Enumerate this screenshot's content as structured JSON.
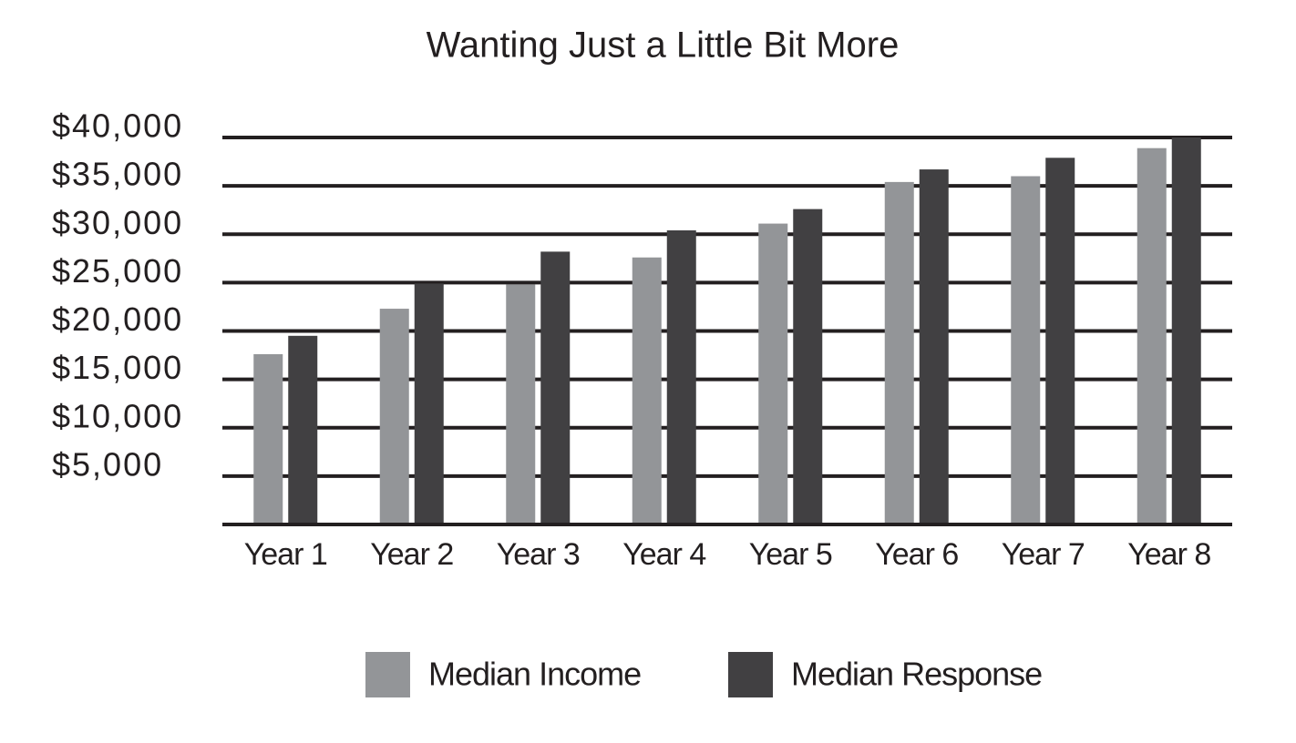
{
  "chart_data": {
    "type": "bar",
    "title": "Wanting Just a Little Bit More",
    "categories": [
      "Year 1",
      "Year 2",
      "Year 3",
      "Year 4",
      "Year 5",
      "Year 6",
      "Year 7",
      "Year 8"
    ],
    "series": [
      {
        "name": "Median Income",
        "color": "#939598",
        "values": [
          17600,
          22300,
          24800,
          27600,
          31100,
          35400,
          36000,
          38900
        ]
      },
      {
        "name": "Median Response",
        "color": "#414042",
        "values": [
          19500,
          24900,
          28200,
          30400,
          32600,
          36700,
          37900,
          40000
        ]
      }
    ],
    "ylim": [
      0,
      40000
    ],
    "yticks": [
      {
        "value": 5000,
        "label": "$5,000"
      },
      {
        "value": 10000,
        "label": "$10,000"
      },
      {
        "value": 15000,
        "label": "$15,000"
      },
      {
        "value": 20000,
        "label": "$20,000"
      },
      {
        "value": 25000,
        "label": "$25,000"
      },
      {
        "value": 30000,
        "label": "$30,000"
      },
      {
        "value": 35000,
        "label": "$35,000"
      },
      {
        "value": 40000,
        "label": "$40,000"
      }
    ],
    "grid": true,
    "legend": "bottom"
  }
}
